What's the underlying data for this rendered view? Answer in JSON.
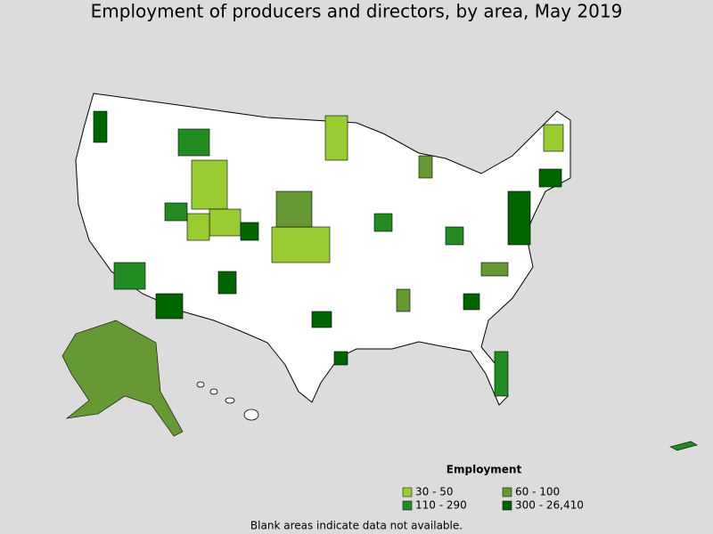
{
  "header": {
    "title": "Employment of producers and directors, by area, May 2019"
  },
  "legend": {
    "title": "Employment",
    "items": [
      {
        "label": "30 - 50",
        "color": "#99cc33"
      },
      {
        "label": "60 - 100",
        "color": "#669933"
      },
      {
        "label": "110 - 290",
        "color": "#228b22"
      },
      {
        "label": "300 - 26,410",
        "color": "#006400"
      }
    ]
  },
  "note": "Blank areas indicate data not available."
}
